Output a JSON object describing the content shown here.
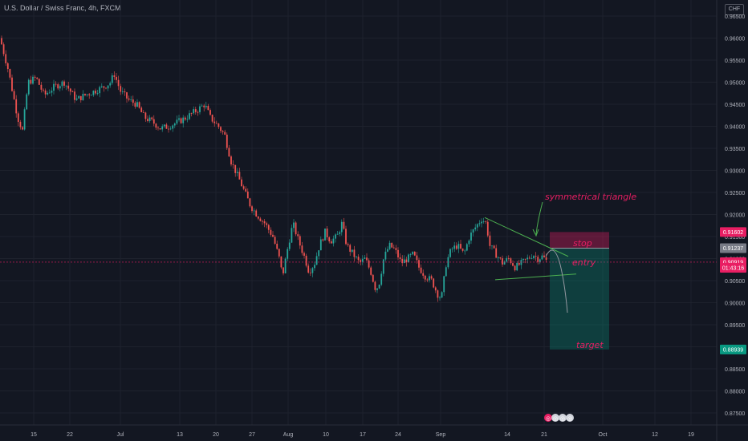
{
  "header": {
    "title": "U.S. Dollar / Swiss Franc, 4h, FXCM",
    "currency": "CHF"
  },
  "chart_data": {
    "type": "candlestick",
    "ylim": [
      0.8735,
      0.967
    ],
    "y_ticks": [
      "0.96500",
      "0.96000",
      "0.95500",
      "0.95000",
      "0.94500",
      "0.94000",
      "0.93500",
      "0.93000",
      "0.92500",
      "0.92000",
      "0.91500",
      "0.91000",
      "0.90500",
      "0.90000",
      "0.89500",
      "0.89000",
      "0.88500",
      "0.88000",
      "0.87500"
    ],
    "x_ticks": [
      "15",
      "22",
      "Jul",
      "13",
      "20",
      "27",
      "Aug",
      "10",
      "17",
      "24",
      "Sep",
      "14",
      "21",
      "Oct",
      "12",
      "19"
    ],
    "close_path": [
      [
        0,
        0.96
      ],
      [
        10,
        0.953
      ],
      [
        22,
        0.942
      ],
      [
        28,
        0.939
      ],
      [
        35,
        0.95
      ],
      [
        45,
        0.951
      ],
      [
        55,
        0.947
      ],
      [
        68,
        0.949
      ],
      [
        80,
        0.95
      ],
      [
        95,
        0.946
      ],
      [
        105,
        0.947
      ],
      [
        118,
        0.948
      ],
      [
        130,
        0.949
      ],
      [
        138,
        0.95
      ],
      [
        142,
        0.952
      ],
      [
        150,
        0.948
      ],
      [
        160,
        0.946
      ],
      [
        170,
        0.945
      ],
      [
        180,
        0.942
      ],
      [
        190,
        0.941
      ],
      [
        200,
        0.9395
      ],
      [
        210,
        0.94
      ],
      [
        222,
        0.941
      ],
      [
        232,
        0.942
      ],
      [
        240,
        0.943
      ],
      [
        248,
        0.944
      ],
      [
        255,
        0.945
      ],
      [
        262,
        0.942
      ],
      [
        272,
        0.94
      ],
      [
        280,
        0.938
      ],
      [
        288,
        0.932
      ],
      [
        298,
        0.928
      ],
      [
        305,
        0.925
      ],
      [
        312,
        0.922
      ],
      [
        320,
        0.92
      ],
      [
        330,
        0.918
      ],
      [
        340,
        0.915
      ],
      [
        348,
        0.91
      ],
      [
        352,
        0.906
      ],
      [
        358,
        0.912
      ],
      [
        365,
        0.918
      ],
      [
        372,
        0.914
      ],
      [
        380,
        0.91
      ],
      [
        385,
        0.907
      ],
      [
        392,
        0.909
      ],
      [
        398,
        0.913
      ],
      [
        405,
        0.916
      ],
      [
        412,
        0.914
      ],
      [
        420,
        0.915
      ],
      [
        426,
        0.918
      ],
      [
        432,
        0.913
      ],
      [
        440,
        0.911
      ],
      [
        448,
        0.909
      ],
      [
        455,
        0.91
      ],
      [
        462,
        0.907
      ],
      [
        468,
        0.903
      ],
      [
        472,
        0.904
      ],
      [
        478,
        0.91
      ],
      [
        485,
        0.913
      ],
      [
        492,
        0.912
      ],
      [
        500,
        0.909
      ],
      [
        508,
        0.91
      ],
      [
        515,
        0.911
      ],
      [
        522,
        0.908
      ],
      [
        530,
        0.906
      ],
      [
        538,
        0.905
      ],
      [
        545,
        0.902
      ],
      [
        550,
        0.901
      ],
      [
        556,
        0.909
      ],
      [
        562,
        0.912
      ],
      [
        570,
        0.913
      ],
      [
        578,
        0.911
      ],
      [
        585,
        0.915
      ],
      [
        592,
        0.917
      ],
      [
        600,
        0.919
      ],
      [
        606,
        0.918
      ],
      [
        610,
        0.913
      ],
      [
        618,
        0.911
      ],
      [
        626,
        0.909
      ],
      [
        634,
        0.91
      ],
      [
        642,
        0.908
      ],
      [
        650,
        0.909
      ],
      [
        658,
        0.91
      ],
      [
        664,
        0.911
      ],
      [
        670,
        0.91
      ],
      [
        676,
        0.9105
      ],
      [
        682,
        0.9092
      ]
    ],
    "annotations": {
      "pattern": "symmetrical triangle",
      "stop": "stop",
      "entry": "entry",
      "target": "target"
    },
    "price_labels": [
      {
        "value": "0.91602",
        "price": 0.91602,
        "color": "#e91e63"
      },
      {
        "value": "0.91237",
        "price": 0.91237,
        "color": "#787b86"
      },
      {
        "value": "0.90919",
        "price": 0.90919,
        "color": "#e91e63"
      },
      {
        "value": "01:43:16",
        "price": 0.9079,
        "color": "#e91e63"
      },
      {
        "value": "0.88939",
        "price": 0.88939,
        "color": "#089981"
      }
    ],
    "position": {
      "stop": 0.91602,
      "entry": 0.91237,
      "target": 0.88939
    },
    "current_price": 0.90919,
    "colors": {
      "up": "#26a69a",
      "down": "#ef5350",
      "stop_zone": "#e91e63",
      "target_zone": "#089981",
      "annotation": "#e91e63",
      "triangle": "#4caf50",
      "forecast": "#9598a1"
    }
  },
  "events": [
    "◎",
    "◎",
    "◎",
    "◎"
  ]
}
